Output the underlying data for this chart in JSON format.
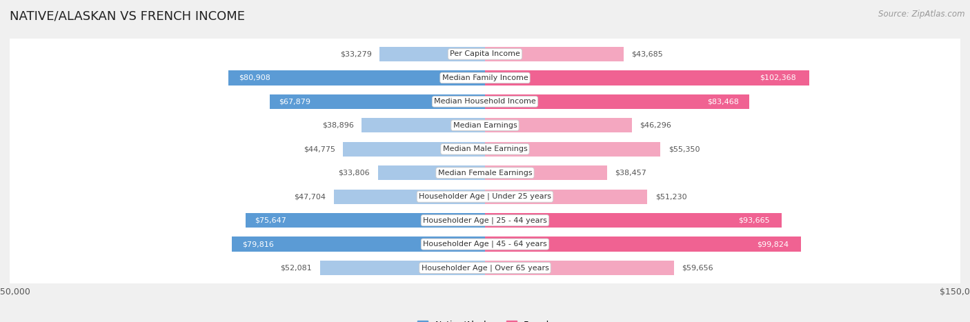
{
  "title": "NATIVE/ALASKAN VS FRENCH INCOME",
  "source": "Source: ZipAtlas.com",
  "categories": [
    "Per Capita Income",
    "Median Family Income",
    "Median Household Income",
    "Median Earnings",
    "Median Male Earnings",
    "Median Female Earnings",
    "Householder Age | Under 25 years",
    "Householder Age | 25 - 44 years",
    "Householder Age | 45 - 64 years",
    "Householder Age | Over 65 years"
  ],
  "native_values": [
    33279,
    80908,
    67879,
    38896,
    44775,
    33806,
    47704,
    75647,
    79816,
    52081
  ],
  "french_values": [
    43685,
    102368,
    83468,
    46296,
    55350,
    38457,
    51230,
    93665,
    99824,
    59656
  ],
  "native_color_light": "#a8c8e8",
  "native_color_dark": "#5b9bd5",
  "french_color_light": "#f4a7c0",
  "french_color_dark": "#f06292",
  "max_value": 150000,
  "background_color": "#f0f0f0",
  "bar_bg_color": "#ffffff",
  "white_text": "#ffffff",
  "dark_text": "#555555",
  "threshold_dark": 65000,
  "title_fontsize": 13,
  "source_fontsize": 8.5,
  "cat_fontsize": 8,
  "value_fontsize": 8,
  "legend_fontsize": 9,
  "axis_label_fontsize": 9
}
